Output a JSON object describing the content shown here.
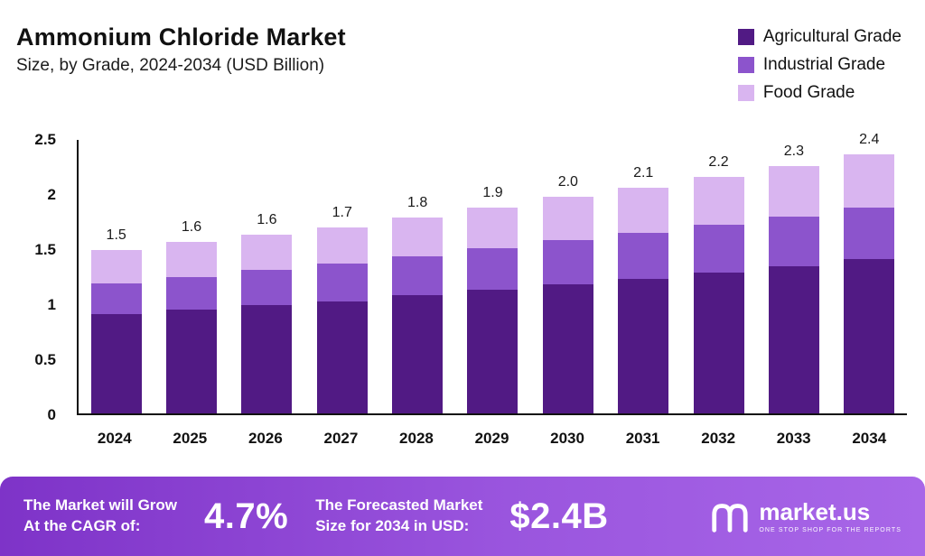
{
  "header": {
    "title": "Ammonium Chloride Market",
    "subtitle": "Size, by Grade, 2024-2034 (USD Billion)"
  },
  "legend": [
    {
      "label": "Agricultural Grade",
      "color": "#511a84"
    },
    {
      "label": "Industrial Grade",
      "color": "#8c54cc"
    },
    {
      "label": "Food Grade",
      "color": "#d9b5f0"
    }
  ],
  "chart_data": {
    "type": "bar",
    "stacked": true,
    "title": "Ammonium Chloride Market Size, by Grade, 2024-2034 (USD Billion)",
    "xlabel": "",
    "ylabel": "USD Billion",
    "ylim": [
      0,
      2.5
    ],
    "yticks": [
      "0",
      "0.5",
      "1",
      "1.5",
      "2",
      "2.5"
    ],
    "grid": false,
    "legend_position": "top-right",
    "categories": [
      "2024",
      "2025",
      "2026",
      "2027",
      "2028",
      "2029",
      "2030",
      "2031",
      "2032",
      "2033",
      "2034"
    ],
    "series": [
      {
        "name": "Agricultural Grade",
        "color": "#511a84",
        "values": [
          0.9,
          0.94,
          0.98,
          1.02,
          1.07,
          1.12,
          1.17,
          1.22,
          1.28,
          1.34,
          1.4
        ]
      },
      {
        "name": "Industrial Grade",
        "color": "#8c54cc",
        "values": [
          0.28,
          0.3,
          0.32,
          0.34,
          0.36,
          0.38,
          0.4,
          0.42,
          0.43,
          0.45,
          0.47
        ]
      },
      {
        "name": "Food Grade",
        "color": "#d9b5f0",
        "values": [
          0.3,
          0.32,
          0.32,
          0.33,
          0.35,
          0.37,
          0.4,
          0.41,
          0.44,
          0.46,
          0.48
        ]
      }
    ],
    "totals": [
      "1.5",
      "1.6",
      "1.6",
      "1.7",
      "1.8",
      "1.9",
      "2.0",
      "2.1",
      "2.2",
      "2.3",
      "2.4"
    ]
  },
  "footer": {
    "cagr_label_line1": "The Market will Grow",
    "cagr_label_line2": "At the CAGR of:",
    "cagr_value": "4.7%",
    "forecast_label_line1": "The Forecasted Market",
    "forecast_label_line2": "Size for 2034 in USD:",
    "forecast_value": "$2.4B",
    "brand": "market.us",
    "brand_tagline": "ONE STOP SHOP FOR THE REPORTS"
  }
}
